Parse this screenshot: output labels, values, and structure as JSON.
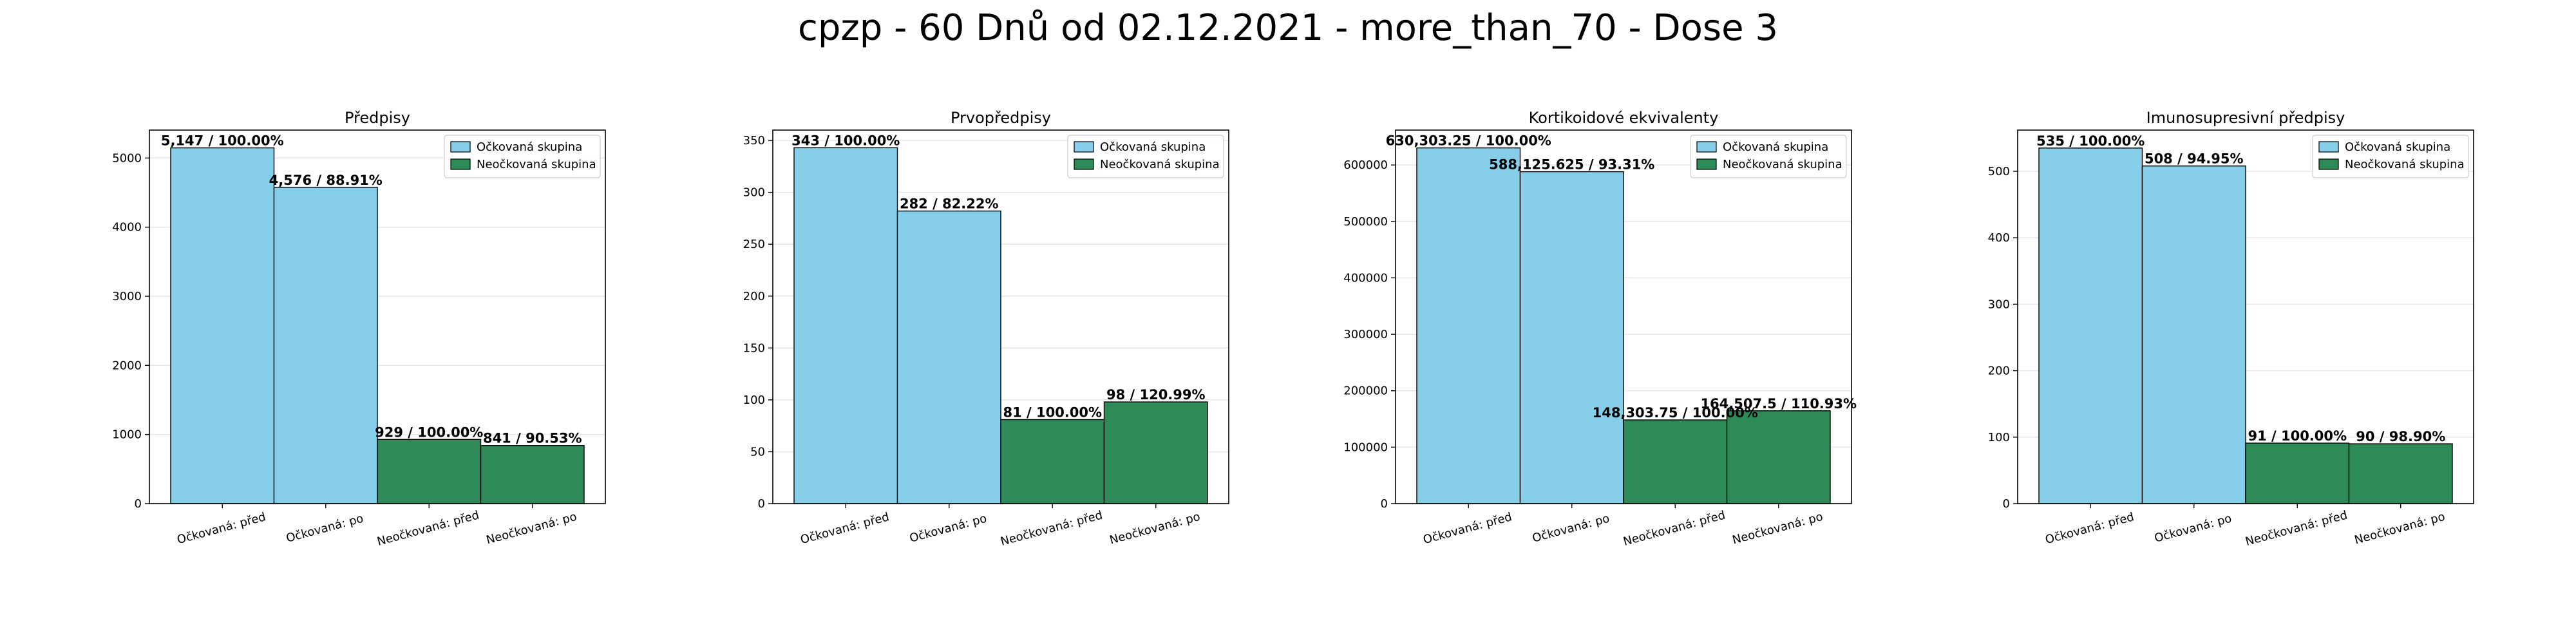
{
  "title": "cpzp - 60 Dnů od 02.12.2021 - more_than_70 - Dose 3",
  "colors": {
    "vaccinated": "#87ceeb",
    "unvaccinated": "#2e8b57",
    "edge": "#000000"
  },
  "legend": {
    "position": "upper right",
    "entries": [
      "Očkovaná skupina",
      "Neočkovaná skupina"
    ]
  },
  "chart_data": [
    {
      "type": "bar",
      "title": "Předpisy",
      "categories": [
        "Očkovaná: před",
        "Očkovaná: po",
        "Neočkovaná: před",
        "Neočkovaná: po"
      ],
      "values": [
        5147,
        4576,
        929,
        841
      ],
      "series_of_bar": [
        "Očkovaná skupina",
        "Očkovaná skupina",
        "Neočkovaná skupina",
        "Neočkovaná skupina"
      ],
      "data_labels": [
        "5,147 / 100.00%",
        "4,576 / 88.91%",
        "929 / 100.00%",
        "841 / 90.53%"
      ],
      "ylim": [
        0,
        5404
      ],
      "yticks": [
        0,
        1000,
        2000,
        3000,
        4000,
        5000
      ],
      "ytick_labels": [
        "0",
        "1000",
        "2000",
        "3000",
        "4000",
        "5000"
      ],
      "grid": true
    },
    {
      "type": "bar",
      "title": "Prvopředpisy",
      "categories": [
        "Očkovaná: před",
        "Očkovaná: po",
        "Neočkovaná: před",
        "Neočkovaná: po"
      ],
      "values": [
        343,
        282,
        81,
        98
      ],
      "series_of_bar": [
        "Očkovaná skupina",
        "Očkovaná skupina",
        "Neočkovaná skupina",
        "Neočkovaná skupina"
      ],
      "data_labels": [
        "343 / 100.00%",
        "282 / 82.22%",
        "81 / 100.00%",
        "98 / 120.99%"
      ],
      "ylim": [
        0,
        360
      ],
      "yticks": [
        0,
        50,
        100,
        150,
        200,
        250,
        300,
        350
      ],
      "ytick_labels": [
        "0",
        "50",
        "100",
        "150",
        "200",
        "250",
        "300",
        "350"
      ],
      "grid": true
    },
    {
      "type": "bar",
      "title": "Kortikoidové ekvivalenty",
      "categories": [
        "Očkovaná: před",
        "Očkovaná: po",
        "Neočkovaná: před",
        "Neočkovaná: po"
      ],
      "values": [
        630303.25,
        588125.625,
        148303.75,
        164507.5
      ],
      "series_of_bar": [
        "Očkovaná skupina",
        "Očkovaná skupina",
        "Neočkovaná skupina",
        "Neočkovaná skupina"
      ],
      "data_labels": [
        "630,303.25 / 100.00%",
        "588,125.625 / 93.31%",
        "148,303.75 / 100.00%",
        "164,507.5 / 110.93%"
      ],
      "ylim": [
        0,
        661818
      ],
      "yticks": [
        0,
        100000,
        200000,
        300000,
        400000,
        500000,
        600000
      ],
      "ytick_labels": [
        "0",
        "100000",
        "200000",
        "300000",
        "400000",
        "500000",
        "600000"
      ],
      "grid": true
    },
    {
      "type": "bar",
      "title": "Imunosupresivní předpisy",
      "categories": [
        "Očkovaná: před",
        "Očkovaná: po",
        "Neočkovaná: před",
        "Neočkovaná: po"
      ],
      "values": [
        535,
        508,
        91,
        90
      ],
      "series_of_bar": [
        "Očkovaná skupina",
        "Očkovaná skupina",
        "Neočkovaná skupina",
        "Neočkovaná skupina"
      ],
      "data_labels": [
        "535 / 100.00%",
        "508 / 94.95%",
        "91 / 100.00%",
        "90 / 98.90%"
      ],
      "ylim": [
        0,
        562
      ],
      "yticks": [
        0,
        100,
        200,
        300,
        400,
        500
      ],
      "ytick_labels": [
        "0",
        "100",
        "200",
        "300",
        "400",
        "500"
      ],
      "grid": true
    }
  ]
}
